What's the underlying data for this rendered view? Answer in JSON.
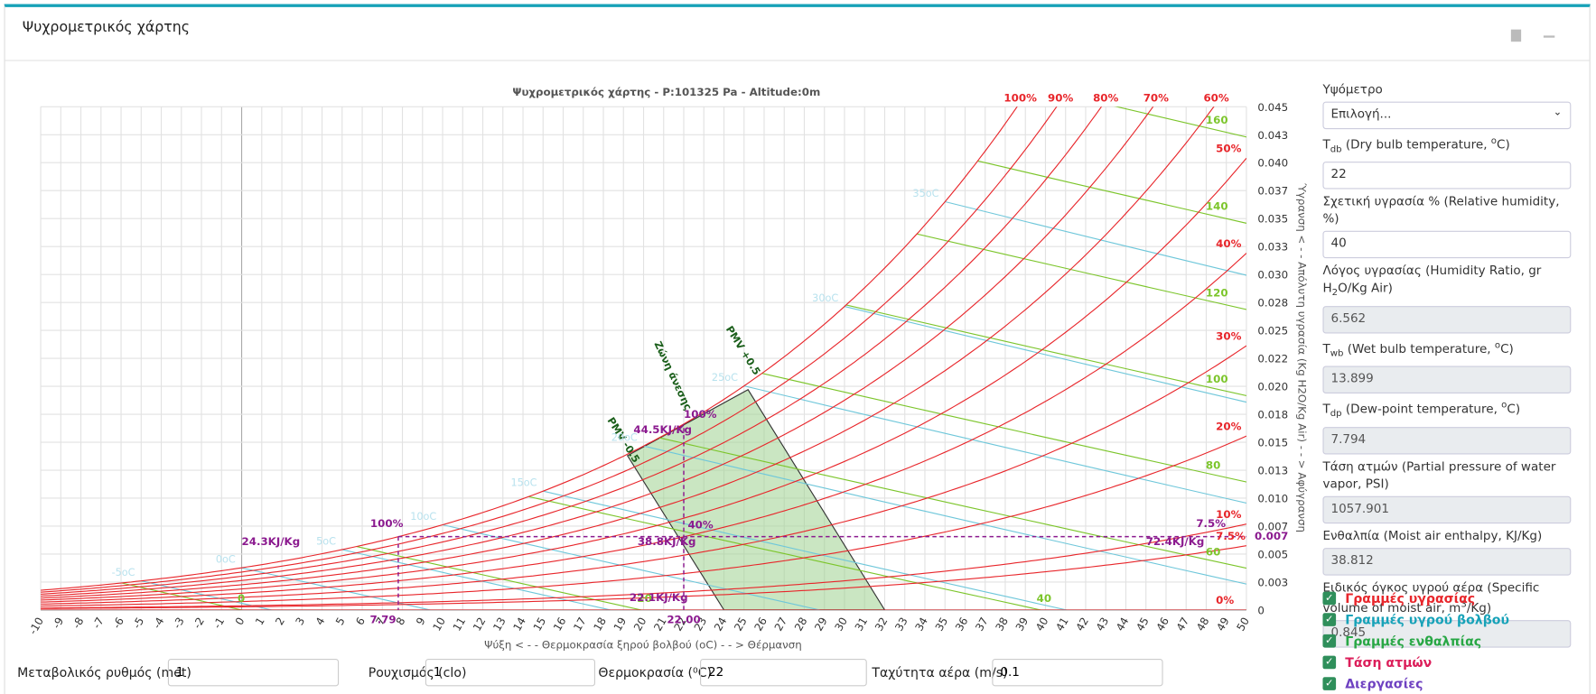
{
  "panel": {
    "title": "Ψυχρομετρικός χάρτης"
  },
  "chart_data": {
    "type": "psychrometric",
    "title": "Ψυχρομετρικός χάρτης - P:101325 Pa - Altitude:0m",
    "pressure": 101325,
    "x_label": "Ψύξη < - - Θερμοκρασία ξηρού βολβού (oC) - - > Θέρμανση",
    "y_label": "Ύγρανση < - - Απόλυτη υγρασία (Kg H2O/Kg Air) - - > Αφύγρανση",
    "xlim": [
      -10,
      50
    ],
    "xticks": [
      -10,
      -9,
      -8,
      -7,
      -6,
      -5,
      -4,
      -3,
      -2,
      -1,
      0,
      1,
      2,
      3,
      4,
      5,
      6,
      7,
      8,
      9,
      10,
      11,
      12,
      13,
      14,
      15,
      16,
      17,
      18,
      19,
      20,
      21,
      22,
      23,
      24,
      25,
      26,
      27,
      28,
      29,
      30,
      31,
      32,
      33,
      34,
      35,
      36,
      37,
      38,
      39,
      40,
      41,
      42,
      43,
      44,
      45,
      46,
      47,
      48,
      49,
      50
    ],
    "ylim": [
      0,
      0.045
    ],
    "yticks": [
      0,
      {
        "value": 0.0025,
        "label": "0.003"
      },
      {
        "value": 0.005,
        "label": "0.005"
      },
      {
        "value": 0.0075,
        "label": "0.007"
      },
      {
        "value": 0.01,
        "label": "0.010"
      },
      {
        "value": 0.0125,
        "label": "0.013"
      },
      {
        "value": 0.015,
        "label": "0.015"
      },
      {
        "value": 0.0175,
        "label": "0.018"
      },
      {
        "value": 0.02,
        "label": "0.020"
      },
      {
        "value": 0.0225,
        "label": "0.022"
      },
      {
        "value": 0.025,
        "label": "0.025"
      },
      {
        "value": 0.0275,
        "label": "0.028"
      },
      {
        "value": 0.03,
        "label": "0.030"
      },
      {
        "value": 0.0325,
        "label": "0.033"
      },
      {
        "value": 0.035,
        "label": "0.035"
      },
      {
        "value": 0.0375,
        "label": "0.037"
      },
      {
        "value": 0.04,
        "label": "0.040"
      },
      {
        "value": 0.0425,
        "label": "0.043"
      },
      {
        "value": 0.045,
        "label": "0.045"
      }
    ],
    "grid": true,
    "rh_color": "#e8262b",
    "rh_lines": [
      {
        "value": 100,
        "label": "100%"
      },
      {
        "value": 90,
        "label": "90%"
      },
      {
        "value": 80,
        "label": "80%"
      },
      {
        "value": 70,
        "label": "70%"
      },
      {
        "value": 60,
        "label": "60%"
      },
      {
        "value": 50,
        "label": "50%"
      },
      {
        "value": 40,
        "label": "40%"
      },
      {
        "value": 30,
        "label": "30%"
      },
      {
        "value": 20,
        "label": "20%"
      },
      {
        "value": 10,
        "label": "10%"
      },
      {
        "value": 7.5,
        "label": "7.5%"
      },
      {
        "value": 0,
        "label": "0%"
      }
    ],
    "enthalpy_color": "#7cc52b",
    "enthalpy_lines": [
      0,
      20,
      40,
      60,
      80,
      100,
      120,
      140,
      160
    ],
    "wetbulb_color": "#6fc7da",
    "wetbulb_lines": [
      {
        "value": -5,
        "label": "-5oC"
      },
      {
        "value": 0,
        "label": "0oC"
      },
      {
        "value": 5,
        "label": "5oC"
      },
      {
        "value": 10,
        "label": "10oC"
      },
      {
        "value": 15,
        "label": "15oC"
      },
      {
        "value": 20,
        "label": "20oC"
      },
      {
        "value": 25,
        "label": "25oC"
      },
      {
        "value": 30,
        "label": "30oC"
      },
      {
        "value": 35,
        "label": "35oC"
      }
    ],
    "comfort_zone": {
      "label": "Ζώνη άνεσης",
      "color": "#9fd18f",
      "vertices": [
        [
          19.2,
          0.0138
        ],
        [
          24,
          0
        ],
        [
          32,
          0
        ],
        [
          25.2,
          0.0197
        ]
      ],
      "pmv_low": "PMV -0.5",
      "pmv_high": "PMV +0.5"
    },
    "state_color": "#8b1a8f",
    "state": {
      "tdb": {
        "value": 22,
        "label": "22.00"
      },
      "w": {
        "value": 0.006562,
        "label": "0.007"
      },
      "tdp": {
        "value": 7.794,
        "label": "7.79"
      }
    },
    "annotations": [
      {
        "text": "100%",
        "x": 22,
        "y": 0.0172
      },
      {
        "text": "44.5KJ/Kg",
        "x": 19.5,
        "y": 0.0158
      },
      {
        "text": "40%",
        "x": 22.2,
        "y": 0.0073
      },
      {
        "text": "38.8KJ/Kg",
        "x": 19.7,
        "y": 0.0058
      },
      {
        "text": "22.1KJ/Kg",
        "x": 19.3,
        "y": 0.0008
      },
      {
        "text": "72.4KJ/Kg",
        "x": 45,
        "y": 0.0058
      },
      {
        "text": "7.5%",
        "x": 47.5,
        "y": 0.0074
      },
      {
        "text": "100%",
        "x": 6.4,
        "y": 0.0074
      },
      {
        "text": "24.3KJ/Kg",
        "x": 0,
        "y": 0.0058
      }
    ]
  },
  "form": {
    "fields": [
      {
        "label": [
          {
            "t": "Υψόμετρο"
          }
        ],
        "select": "Επιλογή..."
      },
      {
        "label": [
          {
            "t": "T"
          },
          {
            "sub": "db"
          },
          {
            "t": " (Dry bulb temperature, "
          },
          {
            "sup": "o"
          },
          {
            "t": "C)"
          }
        ],
        "value": 22
      },
      {
        "label": [
          {
            "t": "Σχετική υγρασία % (Relative humidity, %)"
          }
        ],
        "value": 40
      },
      {
        "label": [
          {
            "t": "Λόγος υγρασίας (Humidity Ratio, gr H"
          },
          {
            "sub": "2"
          },
          {
            "t": "O/Kg Air)"
          }
        ],
        "value": 6.562,
        "readonly": true
      },
      {
        "label": [
          {
            "t": "T"
          },
          {
            "sub": "wb"
          },
          {
            "t": " (Wet bulb temperature, "
          },
          {
            "sup": "o"
          },
          {
            "t": "C)"
          }
        ],
        "value": 13.899,
        "readonly": true
      },
      {
        "label": [
          {
            "t": "T"
          },
          {
            "sub": "dp"
          },
          {
            "t": " (Dew-point temperature, "
          },
          {
            "sup": "o"
          },
          {
            "t": "C)"
          }
        ],
        "value": 7.794,
        "readonly": true
      },
      {
        "label": [
          {
            "t": "Τάση ατμών (Partial pressure of water vapor, PSI)"
          }
        ],
        "value": 1057.901,
        "readonly": true
      },
      {
        "label": [
          {
            "t": "Ενθαλπία (Moist air enthalpy, KJ/Kg)"
          }
        ],
        "value": 38.812,
        "readonly": true
      },
      {
        "label": [
          {
            "t": "Ειδικός όγκος υγρού αέρα (Specific volume of moist air, m"
          },
          {
            "sup": "3"
          },
          {
            "t": "/Kg)"
          }
        ],
        "value": 0.845,
        "readonly": true
      }
    ],
    "checkboxes": [
      {
        "label": "Γραμμές υγρασίας",
        "color": "#e8262b"
      },
      {
        "label": "Γραμμές υγρού βολβού",
        "color": "#17a2b8"
      },
      {
        "label": "Γραμμές ενθαλπίας",
        "color": "#28a745"
      },
      {
        "label": "Τάση ατμών",
        "color": "#dc1e5a"
      },
      {
        "label": "Διεργασίες",
        "color": "#6f42c1"
      }
    ]
  },
  "bottom_inputs": [
    {
      "label": "Μεταβολικός ρυθμός (met)",
      "value": 1
    },
    {
      "label": "Ρουχισμός (clo)",
      "value": 1
    },
    {
      "label": "Θερμοκρασία (⁰C)",
      "value": 22
    },
    {
      "label": "Ταχύτητα αέρα (m/s)",
      "value": 0.1
    }
  ]
}
